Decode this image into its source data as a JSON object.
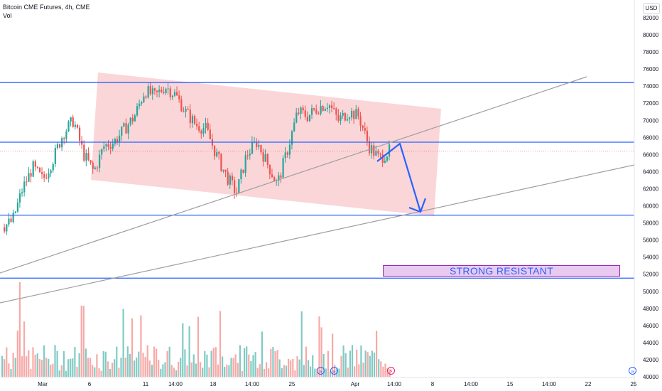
{
  "header": {
    "title": "Bitcoin CME Futures, 4h, CME",
    "volume_label": "Vol"
  },
  "currency_button": "USD",
  "annotation_label": "STRONG RESISTANT",
  "icons": [
    "fast-forward-icon",
    "fast-forward-icon",
    "lightning-icon",
    "fast-forward-icon"
  ],
  "colors": {
    "up": "#26a69a",
    "down": "#ef5350",
    "up_volume": "#80cbc4",
    "down_volume": "#f7a9a7",
    "horizontal_lines": "#2962ff",
    "channel_fill": "#f8c8cb",
    "trendlines": "#9e9e9e",
    "projection_arrow": "#2962ff",
    "resistance_zone": "#e9c9f0",
    "price_tag": "#ef5350"
  },
  "chart_data": {
    "type": "candlestick",
    "title": "Bitcoin CME Futures, 4h, CME",
    "y_axis_ticks": [
      40000,
      42000,
      44000,
      46000,
      48000,
      50000,
      52000,
      54000,
      56000,
      58000,
      60000,
      62000,
      64000,
      66000,
      68000,
      70000,
      72000,
      74000,
      76000,
      78000,
      80000,
      82000
    ],
    "ylim": [
      40000,
      82000
    ],
    "x_axis_ticks": [
      "Mar",
      "6",
      "11",
      "14:00",
      "18",
      "14:00",
      "25",
      "Apr",
      "14:00",
      "8",
      "14:00",
      "15",
      "14:00",
      "22",
      "25"
    ],
    "horizontal_levels": [
      74425,
      67445,
      58910,
      51540
    ],
    "last_price": 66400,
    "candles_approx": {
      "description": "4h candles from late Feb to early Apr, approximated from chart",
      "close_path": [
        57500,
        58200,
        62000,
        64500,
        63000,
        65500,
        68500,
        70000,
        66000,
        64000,
        67000,
        67500,
        69000,
        70500,
        73500,
        72800,
        74000,
        73000,
        71000,
        69500,
        69000,
        66000,
        63500,
        61500,
        66000,
        67500,
        65000,
        62500,
        66500,
        71000,
        70500,
        71500,
        72000,
        70000,
        71000,
        70500,
        67000,
        65500,
        66400
      ]
    },
    "volume": "bars along bottom of pane, green/red by candle direction",
    "annotations": [
      "descending-channel",
      "rising-trendline-upper",
      "rising-trendline-lower",
      "projection-arrow",
      "strong-resistant-zone"
    ]
  }
}
